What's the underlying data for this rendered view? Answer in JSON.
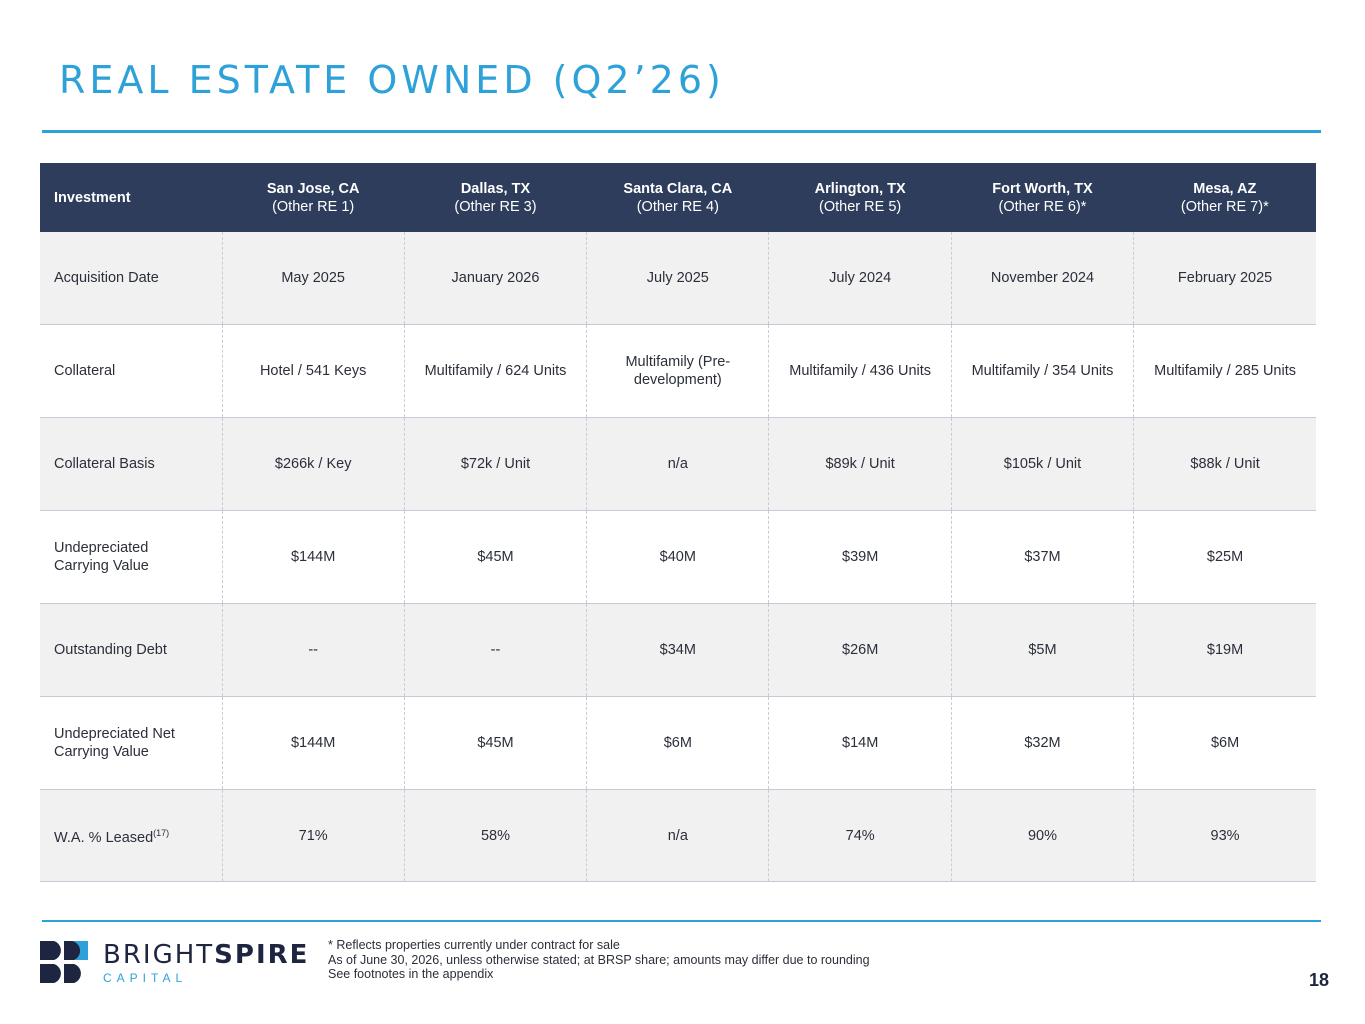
{
  "title": "REAL ESTATE OWNED (Q2’26)",
  "table": {
    "corner_label": "Investment",
    "columns": [
      {
        "city": "San Jose, CA",
        "tag": "(Other RE 1)"
      },
      {
        "city": "Dallas, TX",
        "tag": "(Other RE 3)"
      },
      {
        "city": "Santa Clara, CA",
        "tag": "(Other RE 4)"
      },
      {
        "city": "Arlington, TX",
        "tag": "(Other RE 5)"
      },
      {
        "city": "Fort Worth, TX",
        "tag": "(Other RE 6)*"
      },
      {
        "city": "Mesa, AZ",
        "tag": "(Other RE 7)*"
      }
    ],
    "rows": [
      {
        "label": "Acquisition Date",
        "values": [
          "May 2025",
          "January 2026",
          "July 2025",
          "July 2024",
          "November 2024",
          "February 2025"
        ]
      },
      {
        "label": "Collateral",
        "values": [
          "Hotel / 541 Keys",
          "Multifamily / 624 Units",
          "Multifamily (Pre-development)",
          "Multifamily / 436 Units",
          "Multifamily / 354 Units",
          "Multifamily / 285 Units"
        ]
      },
      {
        "label": "Collateral Basis",
        "values": [
          "$266k / Key",
          "$72k / Unit",
          "n/a",
          "$89k / Unit",
          "$105k / Unit",
          "$88k / Unit"
        ]
      },
      {
        "label": "Undepreciated Carrying Value",
        "values": [
          "$144M",
          "$45M",
          "$40M",
          "$39M",
          "$37M",
          "$25M"
        ]
      },
      {
        "label": "Outstanding Debt",
        "values": [
          "--",
          "--",
          "$34M",
          "$26M",
          "$5M",
          "$19M"
        ]
      },
      {
        "label": "Undepreciated Net Carrying Value",
        "values": [
          "$144M",
          "$45M",
          "$6M",
          "$14M",
          "$32M",
          "$6M"
        ]
      },
      {
        "label": "W.A. % Leased",
        "label_sup": "(17)",
        "values": [
          "71%",
          "58%",
          "n/a",
          "74%",
          "90%",
          "93%"
        ]
      }
    ]
  },
  "footer": {
    "brand_light": "BRIGHT",
    "brand_bold": "SPIRE",
    "brand_sub": "CAPITAL",
    "notes": [
      "* Reflects properties currently under contract for sale",
      "As of June 30, 2026, unless otherwise stated; at BRSP share; amounts may differ due to rounding",
      "See footnotes in the appendix"
    ],
    "page_number": "18"
  },
  "colors": {
    "accent": "#2ea2d8",
    "header_bg": "#2e3d5c",
    "row_shade": "#f1f1f2",
    "brand_dark": "#1e2540"
  },
  "icons": [
    "brightspire-logo-mark"
  ]
}
